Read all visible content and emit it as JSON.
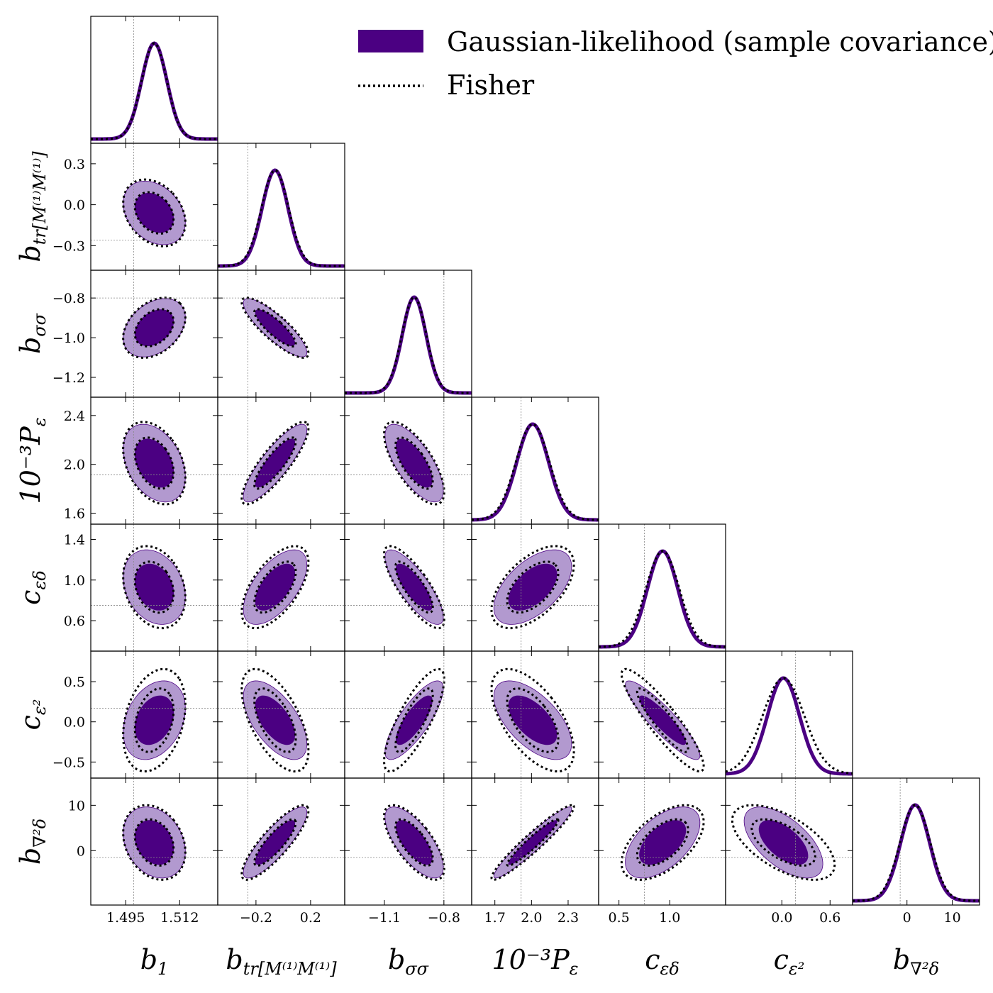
{
  "chart_data": {
    "type": "corner",
    "legend": [
      {
        "label": "Gaussian-likelihood (sample covariance)",
        "style": "filled",
        "color": "#4b0082",
        "color_light": "#b299cf"
      },
      {
        "label": "Fisher",
        "style": "dotted",
        "color": "#000000"
      }
    ],
    "legend_placement": "top-right",
    "parameters": [
      {
        "name": "b1",
        "latex_base": "b",
        "latex_sub": "1",
        "range": [
          1.484,
          1.524
        ],
        "fiducial": 1.4975,
        "ticks": [
          1.495,
          1.512
        ],
        "tick_labels": [
          "1.495",
          "1.512"
        ]
      },
      {
        "name": "btr",
        "latex_base": "b",
        "latex_sub": "tr[M⁽¹⁾M⁽¹⁾]",
        "range": [
          -0.48,
          0.45
        ],
        "fiducial": -0.26,
        "ticks": [
          -0.3,
          0.0,
          0.3
        ],
        "tick_labels": [
          "−0.3",
          "0.0",
          "0.3"
        ],
        "ticks_x": [
          -0.2,
          0.2
        ],
        "tick_labels_x": [
          "−0.2",
          "0.2"
        ]
      },
      {
        "name": "bss",
        "latex_base": "b",
        "latex_sub": "σσ",
        "range": [
          -1.3,
          -0.66
        ],
        "fiducial": -0.8,
        "ticks": [
          -1.2,
          -1.0,
          -0.8
        ],
        "tick_labels": [
          "−1.2",
          "−1.0",
          "−0.8"
        ],
        "ticks_x": [
          -1.1,
          -0.8
        ],
        "tick_labels_x": [
          "−1.1",
          "−0.8"
        ]
      },
      {
        "name": "Peps",
        "latex_base": "10⁻³P",
        "latex_sub": "ε",
        "range": [
          1.51,
          2.55
        ],
        "fiducial": 1.915,
        "ticks": [
          1.6,
          2.0,
          2.4
        ],
        "tick_labels": [
          "1.6",
          "2.0",
          "2.4"
        ],
        "ticks_x": [
          1.7,
          2.0,
          2.3
        ],
        "tick_labels_x": [
          "1.7",
          "2.0",
          "2.3"
        ]
      },
      {
        "name": "ced",
        "latex_base": "c",
        "latex_sub": "εδ",
        "range": [
          0.3,
          1.55
        ],
        "fiducial": 0.75,
        "ticks": [
          0.6,
          1.0,
          1.4
        ],
        "tick_labels": [
          "0.6",
          "1.0",
          "1.4"
        ],
        "ticks_x": [
          0.5,
          1.0
        ],
        "tick_labels_x": [
          "0.5",
          "1.0"
        ]
      },
      {
        "name": "ce2",
        "latex_base": "c",
        "latex_sub": "ε²",
        "range": [
          -0.7,
          0.88
        ],
        "fiducial": 0.17,
        "ticks": [
          -0.5,
          0.0,
          0.5
        ],
        "tick_labels": [
          "−0.5",
          "0.0",
          "0.5"
        ],
        "ticks_x": [
          0.0,
          0.6
        ],
        "tick_labels_x": [
          "0.0",
          "0.6"
        ]
      },
      {
        "name": "bnd",
        "latex_base": "b",
        "latex_sub": "∇²δ",
        "range": [
          -12.0,
          16.0
        ],
        "fiducial": -1.5,
        "ticks": [
          0,
          10
        ],
        "tick_labels": [
          "0",
          "10"
        ]
      }
    ],
    "means": [
      1.504,
      -0.06,
      -0.95,
      2.01,
      0.93,
      0.02,
      1.8
    ],
    "sigmas": [
      0.004,
      0.095,
      0.06,
      0.13,
      0.15,
      0.2,
      3.2
    ],
    "correlations": [
      [
        1,
        -0.3,
        0.35,
        -0.35,
        -0.25,
        0.3,
        -0.25
      ],
      [
        -0.3,
        1,
        -0.85,
        0.85,
        0.6,
        -0.6,
        0.85
      ],
      [
        0.35,
        -0.85,
        1,
        -0.7,
        -0.8,
        0.8,
        -0.7
      ],
      [
        -0.35,
        0.85,
        -0.7,
        1,
        0.55,
        -0.6,
        0.95
      ],
      [
        -0.25,
        0.6,
        -0.8,
        0.55,
        1,
        -0.9,
        0.55
      ],
      [
        0.3,
        -0.6,
        0.8,
        -0.6,
        -0.9,
        1,
        -0.6
      ],
      [
        -0.25,
        0.85,
        -0.7,
        0.95,
        0.55,
        -0.6,
        1
      ]
    ],
    "fisher_sigma_scale": [
      1.0,
      1.05,
      1.03,
      1.06,
      1.1,
      1.3,
      1.05
    ],
    "contour_levels": [
      "68%",
      "95%"
    ]
  }
}
